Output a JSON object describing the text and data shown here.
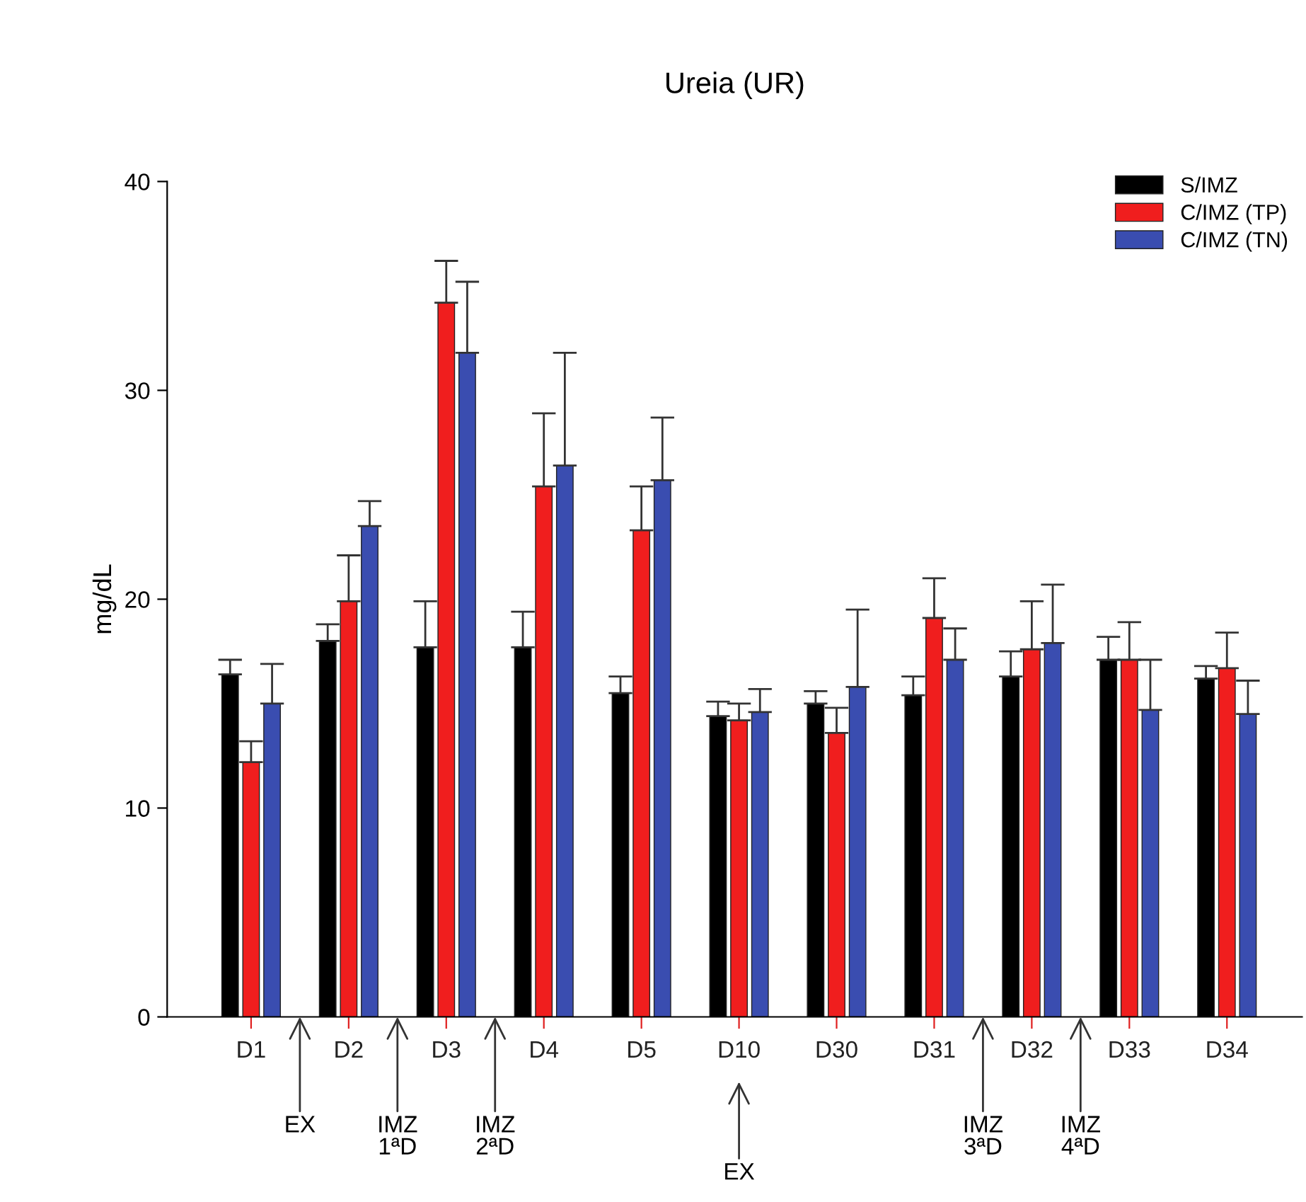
{
  "chart_data": {
    "type": "bar",
    "title": "Ureia (UR)",
    "ylabel": "mg/dL",
    "categories": [
      "D1",
      "D2",
      "D3",
      "D4",
      "D5",
      "D10",
      "D30",
      "D31",
      "D32",
      "D33",
      "D34"
    ],
    "series": [
      {
        "name": "S/IMZ",
        "color": "#000000",
        "values": [
          16.4,
          18.0,
          17.7,
          17.7,
          15.5,
          14.4,
          15.0,
          15.4,
          16.3,
          17.1,
          16.2
        ],
        "errors": [
          [
            16.4,
            17.1
          ],
          [
            18.0,
            18.8
          ],
          [
            17.7,
            19.9
          ],
          [
            17.7,
            19.4
          ],
          [
            15.5,
            16.3
          ],
          [
            14.4,
            15.1
          ],
          [
            15.0,
            15.6
          ],
          [
            15.4,
            16.3
          ],
          [
            16.3,
            17.5
          ],
          [
            17.1,
            18.2
          ],
          [
            16.2,
            16.8
          ]
        ]
      },
      {
        "name": "C/IMZ (TP)",
        "color": "#f01e1e",
        "values": [
          12.2,
          19.9,
          34.2,
          25.4,
          23.3,
          14.2,
          13.6,
          19.1,
          17.6,
          17.1,
          16.7
        ],
        "errors": [
          [
            12.2,
            13.2
          ],
          [
            19.9,
            22.1
          ],
          [
            34.2,
            36.2
          ],
          [
            25.4,
            28.9
          ],
          [
            23.3,
            25.4
          ],
          [
            14.2,
            15.0
          ],
          [
            13.6,
            14.8
          ],
          [
            19.1,
            21.0
          ],
          [
            17.6,
            19.9
          ],
          [
            17.1,
            18.9
          ],
          [
            16.7,
            18.4
          ]
        ]
      },
      {
        "name": "C/IMZ (TN)",
        "color": "#3a4db0",
        "values": [
          15.0,
          23.5,
          31.8,
          26.4,
          25.7,
          14.6,
          15.8,
          17.1,
          17.9,
          14.7,
          14.5
        ],
        "errors": [
          [
            15.0,
            16.9
          ],
          [
            23.5,
            24.7
          ],
          [
            31.8,
            35.2
          ],
          [
            26.4,
            31.8
          ],
          [
            25.7,
            28.7
          ],
          [
            14.6,
            15.7
          ],
          [
            15.8,
            19.5
          ],
          [
            17.1,
            18.6
          ],
          [
            17.9,
            20.7
          ],
          [
            14.7,
            17.1
          ],
          [
            14.5,
            16.1
          ]
        ]
      }
    ],
    "ylim": [
      0,
      40
    ],
    "yticks": [
      0,
      10,
      20,
      30,
      40
    ],
    "grid": false,
    "legend": "top right",
    "annotations": [
      "EX",
      "IMZ\n1ªD",
      "IMZ\n2ªD",
      "EX",
      "IMZ\n3ªD",
      "IMZ\n4ªD"
    ]
  }
}
